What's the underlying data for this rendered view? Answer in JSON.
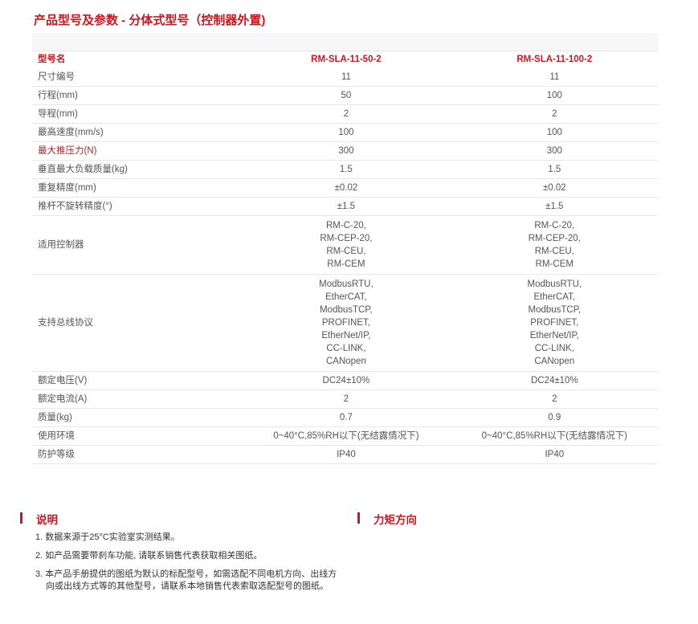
{
  "title": "产品型号及参数 - 分体式型号（控制器外置)",
  "table": {
    "header": [
      "型号名",
      "RM-SLA-11-50-2",
      "RM-SLA-11-100-2"
    ],
    "rows": [
      {
        "label": "尺寸编号",
        "a": "11",
        "b": "11"
      },
      {
        "label": "行程(mm)",
        "a": "50",
        "b": "100"
      },
      {
        "label": "导程(mm)",
        "a": "2",
        "b": "2"
      },
      {
        "label": "最高速度(mm/s)",
        "a": "100",
        "b": "100"
      },
      {
        "label": "最大推压力(N)",
        "a": "300",
        "b": "300"
      },
      {
        "label": "垂直最大负载质量(kg)",
        "a": "1.5",
        "b": "1.5"
      },
      {
        "label": "重复精度(mm)",
        "a": "±0.02",
        "b": "±0.02"
      },
      {
        "label": "推杆不旋转精度(°)",
        "a": "±1.5",
        "b": "±1.5"
      },
      {
        "label": "适用控制器",
        "a": "RM-C-20,\nRM-CEP-20,\nRM-CEU,\nRM-CEM",
        "b": "RM-C-20,\nRM-CEP-20,\nRM-CEU,\nRM-CEM"
      },
      {
        "label": "支持总线协议",
        "a": "ModbusRTU,\nEtherCAT,\nModbusTCP,\nPROFINET,\nEtherNet/IP,\nCC-LINK,\nCANopen",
        "b": "ModbusRTU,\nEtherCAT,\nModbusTCP,\nPROFINET,\nEtherNet/IP,\nCC-LINK,\nCANopen"
      },
      {
        "label": "额定电压(V)",
        "a": "DC24±10%",
        "b": "DC24±10%"
      },
      {
        "label": "额定电流(A)",
        "a": "2",
        "b": "2"
      },
      {
        "label": "质量(kg)",
        "a": "0.7",
        "b": "0.9"
      },
      {
        "label": "使用环境",
        "a": "0~40°C,85%RH以下(无结露情况下)",
        "b": "0~40°C,85%RH以下(无结露情况下)"
      },
      {
        "label": "防护等级",
        "a": "IP40",
        "b": "IP40"
      }
    ]
  },
  "notes": {
    "heading": "说明",
    "items": [
      "1. 数据来源于25°C实验室实测结果。",
      "2. 如产品需要带刹车功能, 请联系销售代表获取相关图纸。",
      "3. 本产品手册提供的图纸为默认的标配型号，如需选配不同电机方向、出线方向或出线方式等的其他型号，请联系本地销售代表索取选配型号的图纸。"
    ]
  },
  "torque": {
    "heading": "力矩方向"
  },
  "colors": {
    "accent": "#c8161e",
    "text": "#555555"
  }
}
